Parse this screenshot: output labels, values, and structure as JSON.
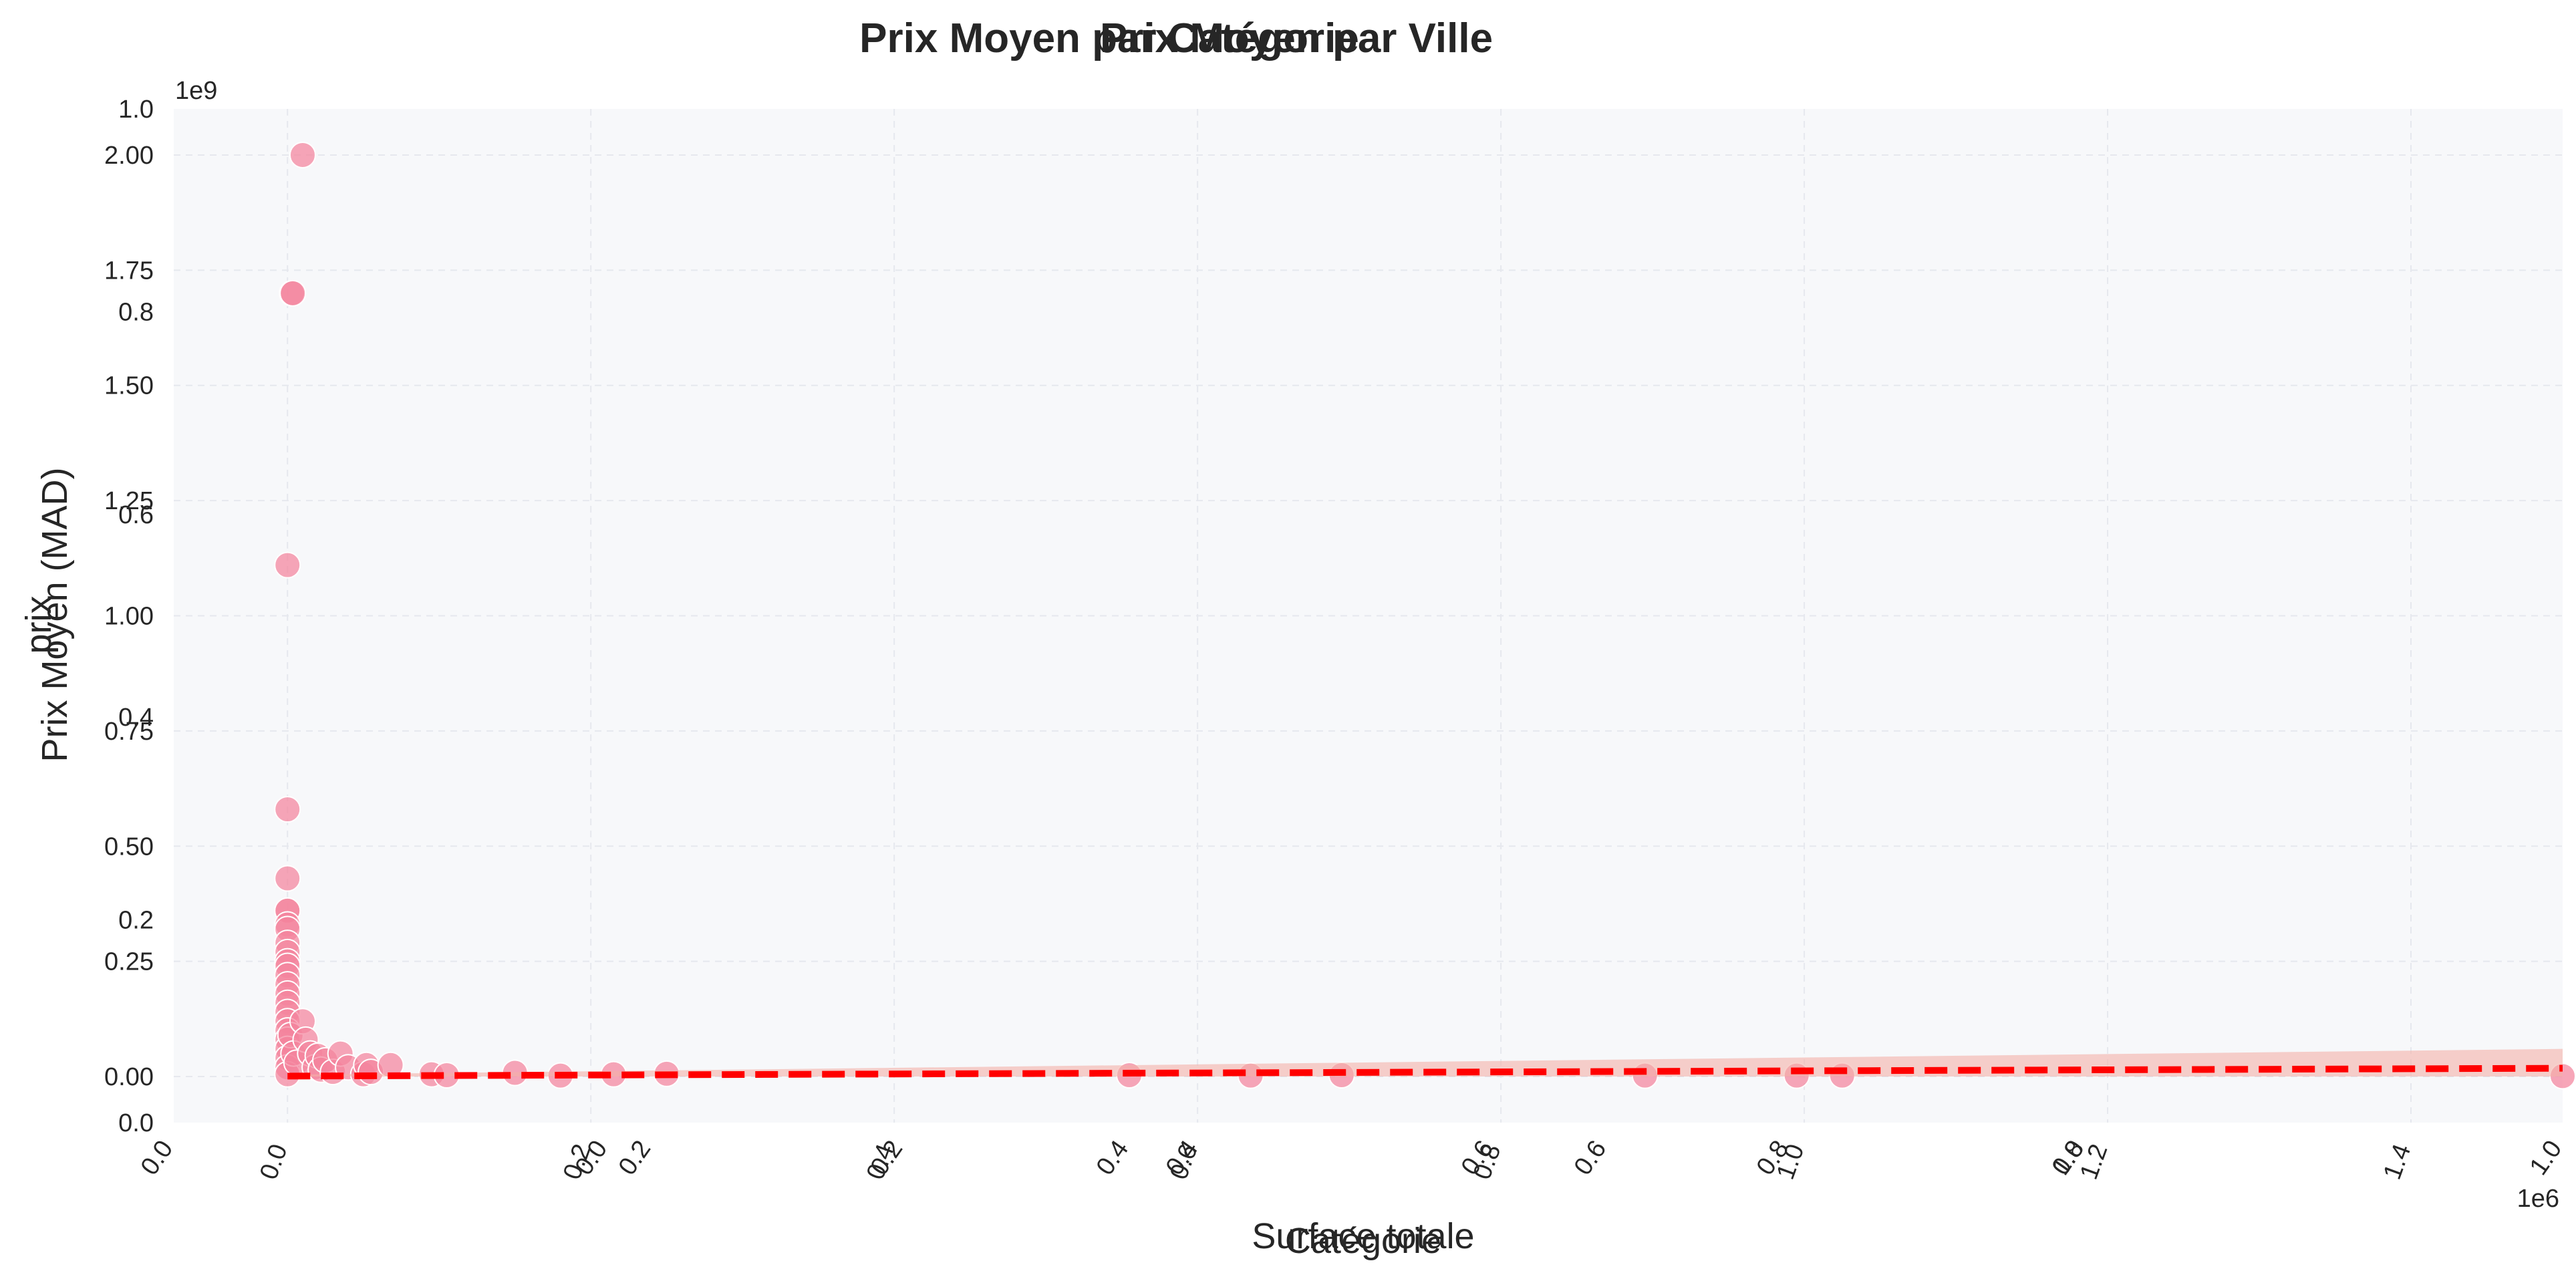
{
  "chart_data": [
    {
      "type": "bar",
      "title": "Prix Moyen par Catégorie",
      "xlabel": "Catégorie",
      "ylabel": "Prix Moyen (MAD)",
      "categories": [],
      "values": [],
      "xlim": [
        0.0,
        1.0
      ],
      "ylim": [
        0.0,
        1.0
      ],
      "x_ticks": [
        "0.0",
        "0.2",
        "0.4",
        "0.6",
        "0.8",
        "1.0"
      ],
      "y_ticks": [
        "0.0",
        "0.2",
        "0.4",
        "0.6",
        "0.8",
        "1.0"
      ],
      "grid": true
    },
    {
      "type": "bar",
      "title": "Prix Moyen par Ville",
      "xlabel": "",
      "ylabel": "",
      "categories": [],
      "values": [],
      "xlim": [
        0.0,
        1.0
      ],
      "ylim": [
        0.0,
        1.0
      ],
      "x_ticks": [
        "0.0",
        "0.2",
        "0.4",
        "0.6",
        "0.8",
        "1.0"
      ],
      "grid": true
    },
    {
      "type": "scatter",
      "title": "",
      "xlabel": "Surface totale",
      "ylabel": "prix",
      "x_multiplier": "1e6",
      "y_multiplier": "1e9",
      "xlim": [
        -0.075,
        1.5
      ],
      "ylim": [
        -0.1,
        2.1
      ],
      "x_ticks": [
        "0.0",
        "0.2",
        "0.4",
        "0.6",
        "0.8",
        "1.0",
        "1.2",
        "1.4"
      ],
      "y_ticks": [
        "0.00",
        "0.25",
        "0.50",
        "0.75",
        "1.00",
        "1.25",
        "1.50",
        "1.75",
        "2.00"
      ],
      "grid": true,
      "point_color": "#f4849c",
      "points": [
        [
          0.01,
          2.0
        ],
        [
          0.003,
          1.7
        ],
        [
          0.0035,
          1.7
        ],
        [
          0.0,
          1.11
        ],
        [
          0.0,
          0.58
        ],
        [
          0.0,
          0.43
        ],
        [
          0.0,
          0.36
        ],
        [
          0.0,
          0.36
        ],
        [
          0.0,
          0.33
        ],
        [
          0.0,
          0.32
        ],
        [
          0.0,
          0.29
        ],
        [
          0.0,
          0.27
        ],
        [
          0.0,
          0.25
        ],
        [
          0.0,
          0.24
        ],
        [
          0.0,
          0.22
        ],
        [
          0.0,
          0.2
        ],
        [
          0.0,
          0.18
        ],
        [
          0.0,
          0.16
        ],
        [
          0.0,
          0.14
        ],
        [
          0.0,
          0.12
        ],
        [
          0.0,
          0.1
        ],
        [
          0.0,
          0.08
        ],
        [
          0.0,
          0.06
        ],
        [
          0.0,
          0.04
        ],
        [
          0.0,
          0.02
        ],
        [
          0.0,
          0.005
        ],
        [
          0.002,
          0.09
        ],
        [
          0.004,
          0.05
        ],
        [
          0.006,
          0.03
        ],
        [
          0.01,
          0.12
        ],
        [
          0.012,
          0.08
        ],
        [
          0.015,
          0.05
        ],
        [
          0.018,
          0.02
        ],
        [
          0.02,
          0.045
        ],
        [
          0.022,
          0.015
        ],
        [
          0.025,
          0.035
        ],
        [
          0.03,
          0.01
        ],
        [
          0.035,
          0.05
        ],
        [
          0.04,
          0.02
        ],
        [
          0.05,
          0.005
        ],
        [
          0.052,
          0.025
        ],
        [
          0.055,
          0.01
        ],
        [
          0.068,
          0.025
        ],
        [
          0.095,
          0.005
        ],
        [
          0.105,
          0.003
        ],
        [
          0.15,
          0.008
        ],
        [
          0.18,
          0.002
        ],
        [
          0.215,
          0.005
        ],
        [
          0.25,
          0.006
        ],
        [
          0.555,
          0.003
        ],
        [
          0.635,
          0.002
        ],
        [
          0.695,
          0.003
        ],
        [
          0.895,
          0.002
        ],
        [
          0.995,
          0.002
        ],
        [
          1.025,
          0.002
        ],
        [
          1.5,
          0.001
        ]
      ],
      "regression": {
        "color": "#ff0000",
        "style": "dashed",
        "band_color": "#f4b0a8",
        "x": [
          0.0,
          1.5
        ],
        "y": [
          0.001,
          0.018
        ],
        "band_lower": [
          0.0,
          0.0
        ],
        "band_upper": [
          0.004,
          0.06
        ]
      }
    }
  ]
}
